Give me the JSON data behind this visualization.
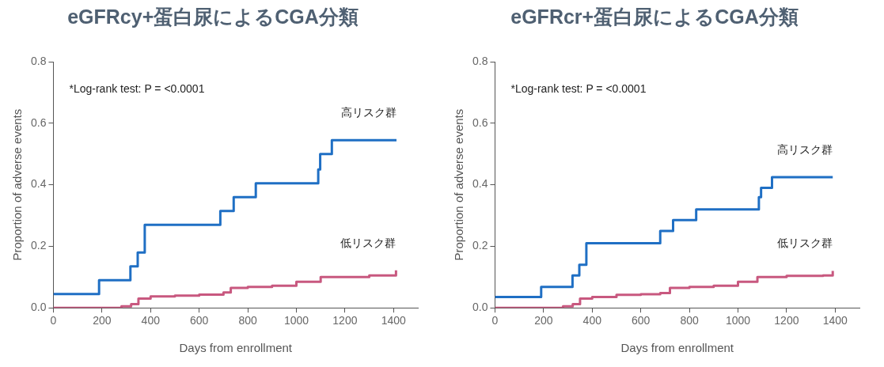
{
  "chart_data": [
    {
      "type": "step",
      "title": "eGFRcy+蛋白尿によるCGA分類",
      "xlabel": "Days from enrollment",
      "ylabel": "Proportion of adverse events",
      "annotations": [
        "*Log-rank test: P = <0.0001"
      ],
      "xlim": [
        0,
        1500
      ],
      "xticks": [
        0,
        200,
        400,
        600,
        800,
        1000,
        1200,
        1400
      ],
      "ylim": [
        0,
        0.8
      ],
      "yticks": [
        {
          "value": 0,
          "label": "0.0"
        },
        {
          "value": 0.2,
          "label": "0.2"
        },
        {
          "value": 0.4,
          "label": "0.4"
        },
        {
          "value": 0.6,
          "label": "0.6"
        },
        {
          "value": 0.8,
          "label": "0.8"
        }
      ],
      "grid": false,
      "legend": false,
      "series": [
        {
          "name": "高リスク群",
          "color": "#1f6fc4",
          "x": [
            0,
            188,
            317,
            347,
            376,
            687,
            742,
            833,
            1090,
            1098,
            1146,
            1412
          ],
          "values": [
            0.045,
            0.09,
            0.135,
            0.18,
            0.27,
            0.315,
            0.36,
            0.405,
            0.45,
            0.5,
            0.545,
            0.545
          ]
        },
        {
          "name": "低リスク群",
          "color": "#c8587f",
          "x": [
            0,
            280,
            320,
            350,
            400,
            500,
            600,
            700,
            730,
            800,
            900,
            1000,
            1100,
            1200,
            1300,
            1370,
            1410
          ],
          "values": [
            0,
            0.005,
            0.012,
            0.03,
            0.037,
            0.04,
            0.043,
            0.05,
            0.065,
            0.068,
            0.072,
            0.085,
            0.1,
            0.1,
            0.105,
            0.105,
            0.122
          ]
        }
      ]
    },
    {
      "type": "step",
      "title": "eGFRcr+蛋白尿によるCGA分類",
      "xlabel": "Days from enrollment",
      "ylabel": "Proportion of adverse events",
      "annotations": [
        "*Log-rank test: P = <0.0001"
      ],
      "xlim": [
        0,
        1500
      ],
      "xticks": [
        0,
        200,
        400,
        600,
        800,
        1000,
        1200,
        1400
      ],
      "ylim": [
        0,
        0.8
      ],
      "yticks": [
        {
          "value": 0,
          "label": "0.0"
        },
        {
          "value": 0.2,
          "label": "0.2"
        },
        {
          "value": 0.4,
          "label": "0.4"
        },
        {
          "value": 0.6,
          "label": "0.6"
        },
        {
          "value": 0.8,
          "label": "0.8"
        }
      ],
      "grid": false,
      "legend": false,
      "series": [
        {
          "name": "高リスク群",
          "color": "#1f6fc4",
          "x": [
            0,
            190,
            319,
            347,
            376,
            680,
            733,
            828,
            1086,
            1095,
            1140,
            1390
          ],
          "values": [
            0.035,
            0.068,
            0.105,
            0.14,
            0.21,
            0.25,
            0.285,
            0.32,
            0.36,
            0.39,
            0.425,
            0.425
          ]
        },
        {
          "name": "低リスク群",
          "color": "#c8587f",
          "x": [
            0,
            280,
            320,
            350,
            400,
            500,
            600,
            680,
            720,
            800,
            900,
            1000,
            1080,
            1200,
            1350,
            1390
          ],
          "values": [
            0,
            0.005,
            0.012,
            0.03,
            0.035,
            0.042,
            0.044,
            0.048,
            0.065,
            0.068,
            0.072,
            0.085,
            0.1,
            0.104,
            0.105,
            0.12
          ]
        }
      ]
    }
  ]
}
